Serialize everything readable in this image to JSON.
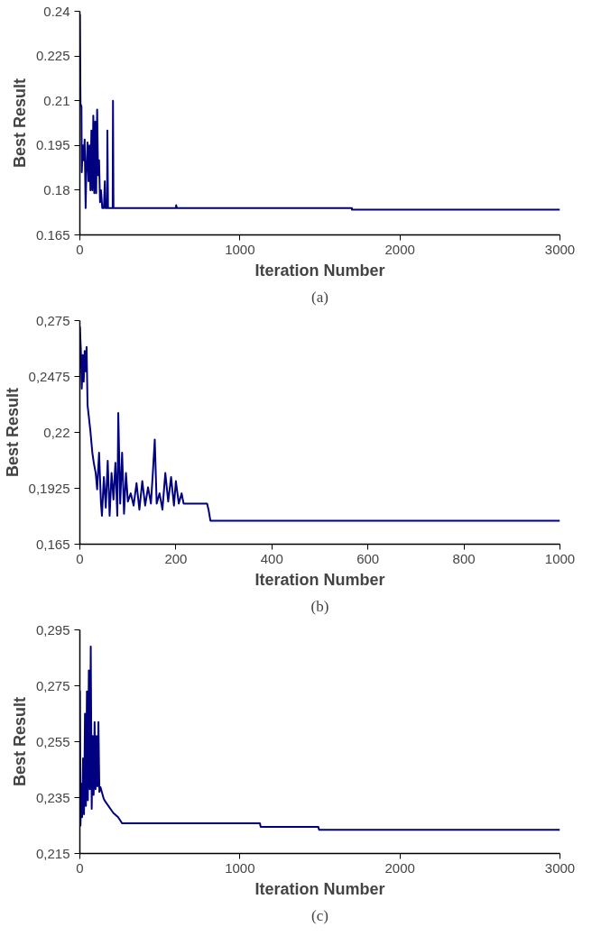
{
  "chart_data": [
    {
      "type": "line",
      "xlabel": "Iteration Number",
      "ylabel": "Best Result",
      "annotations": [
        "(a)"
      ],
      "xlim": [
        0,
        3000
      ],
      "xticks": [
        0,
        1000,
        2000,
        3000
      ],
      "ylim": [
        0.165,
        0.24
      ],
      "yticks": [
        0.165,
        0.18,
        0.195,
        0.21,
        0.225,
        0.24
      ],
      "grid": false,
      "marker": "none",
      "line_style": "solid",
      "series": [
        {
          "color": "#000080",
          "x": [
            0,
            4,
            10,
            12,
            18,
            24,
            30,
            36,
            40,
            48,
            54,
            60,
            66,
            72,
            78,
            84,
            90,
            96,
            102,
            108,
            114,
            120,
            126,
            132,
            140,
            150,
            156,
            160,
            170,
            172,
            176,
            205,
            207,
            210,
            600,
            602,
            606,
            1700,
            1700,
            3000
          ],
          "values": [
            0.239,
            0.209,
            0.208,
            0.186,
            0.195,
            0.19,
            0.197,
            0.174,
            0.185,
            0.196,
            0.183,
            0.195,
            0.18,
            0.2,
            0.18,
            0.205,
            0.179,
            0.203,
            0.179,
            0.207,
            0.185,
            0.19,
            0.176,
            0.18,
            0.174,
            0.174,
            0.183,
            0.174,
            0.174,
            0.2,
            0.174,
            0.174,
            0.21,
            0.174,
            0.174,
            0.175,
            0.174,
            0.174,
            0.1735,
            0.1735
          ]
        }
      ]
    },
    {
      "type": "line",
      "xlabel": "Iteration Number",
      "ylabel": "Best Result",
      "annotations": [
        "(b)"
      ],
      "xlim": [
        0,
        1000
      ],
      "xticks": [
        0,
        200,
        400,
        600,
        800,
        1000
      ],
      "ylim": [
        0.165,
        0.275
      ],
      "yticks": [
        {
          "value": 0.165,
          "label": "0,165"
        },
        {
          "value": 0.1925,
          "label": "0,1925"
        },
        {
          "value": 0.22,
          "label": "0,22"
        },
        {
          "value": 0.2475,
          "label": "0,2475"
        },
        {
          "value": 0.275,
          "label": "0,275"
        }
      ],
      "grid": false,
      "marker": "none",
      "line_style": "solid",
      "series": [
        {
          "color": "#000080",
          "x": [
            0,
            2,
            4,
            6,
            8,
            10,
            12,
            14,
            16,
            22,
            26,
            29,
            33,
            36,
            40,
            44,
            46,
            50,
            54,
            58,
            62,
            66,
            70,
            74,
            78,
            80,
            84,
            88,
            92,
            96,
            100,
            106,
            112,
            118,
            124,
            130,
            136,
            142,
            148,
            152,
            156,
            160,
            166,
            172,
            178,
            184,
            190,
            196,
            200,
            206,
            212,
            216,
            265,
            268,
            272,
            1000
          ],
          "values": [
            0.272,
            0.261,
            0.2415,
            0.258,
            0.245,
            0.26,
            0.25,
            0.262,
            0.2335,
            0.2205,
            0.21,
            0.205,
            0.2,
            0.192,
            0.21,
            0.185,
            0.179,
            0.198,
            0.183,
            0.206,
            0.179,
            0.2,
            0.187,
            0.205,
            0.179,
            0.2295,
            0.185,
            0.21,
            0.18,
            0.2,
            0.186,
            0.19,
            0.184,
            0.195,
            0.182,
            0.196,
            0.184,
            0.193,
            0.185,
            0.2,
            0.2165,
            0.185,
            0.19,
            0.182,
            0.2,
            0.186,
            0.198,
            0.184,
            0.196,
            0.185,
            0.19,
            0.185,
            0.185,
            0.182,
            0.1765,
            0.1765
          ]
        }
      ]
    },
    {
      "type": "line",
      "xlabel": "Iteration Number",
      "ylabel": "Best Result",
      "annotations": [
        "(c)"
      ],
      "xlim": [
        0,
        3000
      ],
      "xticks": [
        0,
        1000,
        2000,
        3000
      ],
      "ylim": [
        0.215,
        0.295
      ],
      "yticks": [
        {
          "value": 0.215,
          "label": "0,215"
        },
        {
          "value": 0.235,
          "label": "0,235"
        },
        {
          "value": 0.255,
          "label": "0,255"
        },
        {
          "value": 0.275,
          "label": "0,275"
        },
        {
          "value": 0.295,
          "label": "0,295"
        }
      ],
      "grid": false,
      "marker": "none",
      "line_style": "solid",
      "series": [
        {
          "color": "#000080",
          "x": [
            0,
            4,
            8,
            14,
            20,
            26,
            32,
            38,
            44,
            50,
            56,
            62,
            68,
            74,
            80,
            86,
            92,
            98,
            104,
            110,
            116,
            122,
            129,
            149,
            160,
            209,
            239,
            264,
            1125,
            1130,
            1490,
            1495,
            3000
          ],
          "values": [
            0.2733,
            0.225,
            0.24,
            0.228,
            0.249,
            0.229,
            0.265,
            0.232,
            0.273,
            0.234,
            0.2805,
            0.238,
            0.289,
            0.231,
            0.257,
            0.236,
            0.262,
            0.238,
            0.257,
            0.239,
            0.262,
            0.237,
            0.2387,
            0.2346,
            0.2335,
            0.2295,
            0.228,
            0.2258,
            0.2258,
            0.2245,
            0.2245,
            0.2235,
            0.2235
          ]
        }
      ]
    }
  ]
}
